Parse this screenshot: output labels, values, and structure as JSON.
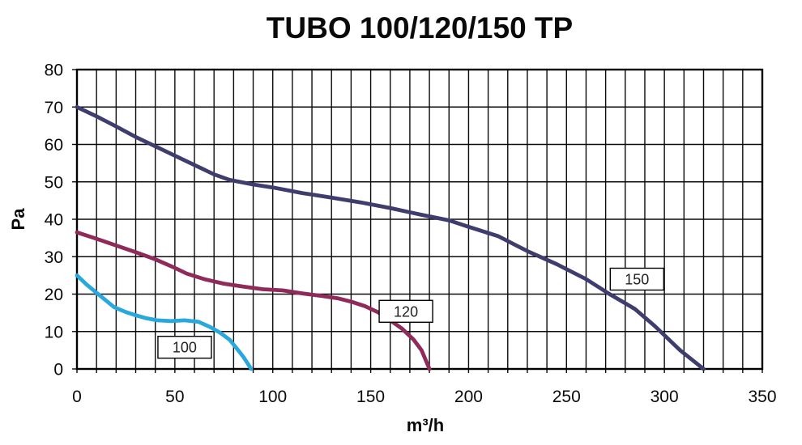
{
  "title": "TUBO 100/120/150 TP",
  "chart_data": {
    "type": "line",
    "title": "TUBO 100/120/150 TP",
    "xlabel": "m³/h",
    "ylabel": "Pa",
    "xlim": [
      0,
      350
    ],
    "ylim": [
      0,
      80
    ],
    "x_ticks": [
      0,
      50,
      100,
      150,
      200,
      250,
      300,
      350
    ],
    "y_ticks": [
      0,
      10,
      20,
      30,
      40,
      50,
      60,
      70,
      80
    ],
    "grid": true,
    "grid_step_x": 10,
    "grid_step_y": 10,
    "grid_color": "#0b0b0b",
    "legend_position": "inline-label-boxes",
    "series": [
      {
        "name": "100",
        "color": "#29A8DB",
        "label_at": [
          55,
          5.8
        ],
        "points": [
          [
            0,
            25
          ],
          [
            5,
            22.5
          ],
          [
            12,
            19.5
          ],
          [
            19,
            16.5
          ],
          [
            25,
            15.2
          ],
          [
            29,
            14.5
          ],
          [
            35,
            13.6
          ],
          [
            41,
            13.0
          ],
          [
            48,
            12.8
          ],
          [
            55,
            13.0
          ],
          [
            62,
            12.6
          ],
          [
            68,
            11.2
          ],
          [
            73,
            9.7
          ],
          [
            78,
            7.8
          ],
          [
            82,
            5.2
          ],
          [
            85,
            3.2
          ],
          [
            89,
            0
          ]
        ]
      },
      {
        "name": "120",
        "color": "#8F2A5A",
        "label_at": [
          168,
          15.4
        ],
        "points": [
          [
            0,
            36.5
          ],
          [
            10,
            34.8
          ],
          [
            20,
            33
          ],
          [
            30,
            31.2
          ],
          [
            40,
            29.3
          ],
          [
            50,
            27
          ],
          [
            56,
            25.5
          ],
          [
            65,
            24
          ],
          [
            75,
            22.8
          ],
          [
            85,
            22
          ],
          [
            95,
            21.3
          ],
          [
            105,
            21
          ],
          [
            115,
            20.2
          ],
          [
            125,
            19.5
          ],
          [
            133,
            18.9
          ],
          [
            140,
            18
          ],
          [
            147,
            16.8
          ],
          [
            154,
            15.1
          ],
          [
            160,
            13
          ],
          [
            166,
            10.8
          ],
          [
            172,
            7.8
          ],
          [
            176,
            5
          ],
          [
            180,
            0
          ]
        ]
      },
      {
        "name": "150",
        "color": "#3F3D6D",
        "label_at": [
          286,
          24
        ],
        "points": [
          [
            0,
            70
          ],
          [
            10,
            67.5
          ],
          [
            20,
            64.8
          ],
          [
            30,
            62
          ],
          [
            40,
            59.5
          ],
          [
            50,
            57
          ],
          [
            60,
            54.5
          ],
          [
            70,
            52
          ],
          [
            78,
            50.5
          ],
          [
            90,
            49.3
          ],
          [
            100,
            48.5
          ],
          [
            115,
            47
          ],
          [
            130,
            45.8
          ],
          [
            145,
            44.5
          ],
          [
            160,
            43
          ],
          [
            175,
            41.3
          ],
          [
            190,
            39.7
          ],
          [
            200,
            38
          ],
          [
            215,
            35.5
          ],
          [
            230,
            31.5
          ],
          [
            245,
            28
          ],
          [
            260,
            24
          ],
          [
            272,
            20
          ],
          [
            285,
            16
          ],
          [
            295,
            11.5
          ],
          [
            308,
            5
          ],
          [
            320,
            0
          ]
        ]
      }
    ]
  }
}
